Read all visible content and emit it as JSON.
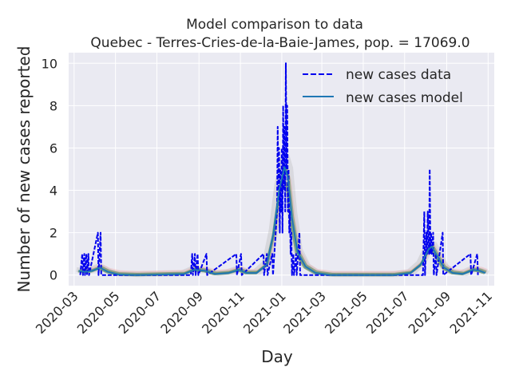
{
  "chart_data": {
    "type": "line",
    "title": "Model comparison to data",
    "subtitle": "Quebec - Terres-Cries-de-la-Baie-James, pop. = 17069.0",
    "xlabel": "Day",
    "ylabel": "Number of new cases reported",
    "xlim": [
      "2020-02-22",
      "2021-11-10"
    ],
    "ylim": [
      -0.5,
      10.5
    ],
    "yticks": [
      0,
      2,
      4,
      6,
      8,
      10
    ],
    "xticks": [
      "2020-03",
      "2020-05",
      "2020-07",
      "2020-09",
      "2020-11",
      "2021-01",
      "2021-03",
      "2021-05",
      "2021-07",
      "2021-09",
      "2021-11"
    ],
    "grid": true,
    "legend_position": "top-right",
    "colors": {
      "background": "#eaeaf2",
      "grid": "#ffffff",
      "data": "#0000ee",
      "model": "#1f77b4",
      "ensemble_gray": "#b4b4b4",
      "ensemble_pink": "#f0a0a0",
      "ensemble_green": "#5a8a5a"
    },
    "series": [
      {
        "name": "new cases data",
        "style": "dashed",
        "points": [
          [
            "2020-03-10",
            0
          ],
          [
            "2020-03-13",
            1
          ],
          [
            "2020-03-14",
            0
          ],
          [
            "2020-03-16",
            1
          ],
          [
            "2020-03-17",
            0
          ],
          [
            "2020-03-19",
            1
          ],
          [
            "2020-03-20",
            0
          ],
          [
            "2020-03-22",
            1
          ],
          [
            "2020-03-23",
            0
          ],
          [
            "2020-04-05",
            2
          ],
          [
            "2020-04-06",
            0
          ],
          [
            "2020-04-09",
            2
          ],
          [
            "2020-04-10",
            0
          ],
          [
            "2020-08-20",
            0
          ],
          [
            "2020-08-22",
            1
          ],
          [
            "2020-08-23",
            0
          ],
          [
            "2020-08-26",
            1
          ],
          [
            "2020-08-27",
            0
          ],
          [
            "2020-08-30",
            1
          ],
          [
            "2020-08-31",
            0
          ],
          [
            "2020-09-12",
            1
          ],
          [
            "2020-09-13",
            0
          ],
          [
            "2020-10-26",
            1
          ],
          [
            "2020-10-27",
            0
          ],
          [
            "2020-11-02",
            1
          ],
          [
            "2020-11-03",
            0
          ],
          [
            "2020-12-05",
            1
          ],
          [
            "2020-12-06",
            0
          ],
          [
            "2020-12-10",
            1
          ],
          [
            "2020-12-11",
            0
          ],
          [
            "2020-12-18",
            1
          ],
          [
            "2020-12-19",
            0
          ],
          [
            "2020-12-25",
            3
          ],
          [
            "2020-12-26",
            7
          ],
          [
            "2020-12-27",
            4
          ],
          [
            "2020-12-28",
            6
          ],
          [
            "2020-12-29",
            2
          ],
          [
            "2020-12-30",
            5
          ],
          [
            "2020-12-31",
            3
          ],
          [
            "2021-01-01",
            6
          ],
          [
            "2021-01-02",
            2
          ],
          [
            "2021-01-03",
            8
          ],
          [
            "2021-01-04",
            4
          ],
          [
            "2021-01-05",
            7
          ],
          [
            "2021-01-06",
            3
          ],
          [
            "2021-01-07",
            10
          ],
          [
            "2021-01-08",
            5
          ],
          [
            "2021-01-09",
            8
          ],
          [
            "2021-01-10",
            3
          ],
          [
            "2021-01-11",
            5
          ],
          [
            "2021-01-12",
            2
          ],
          [
            "2021-01-13",
            3
          ],
          [
            "2021-01-14",
            1
          ],
          [
            "2021-01-15",
            2
          ],
          [
            "2021-01-16",
            0
          ],
          [
            "2021-01-18",
            1
          ],
          [
            "2021-01-19",
            0
          ],
          [
            "2021-01-22",
            1
          ],
          [
            "2021-01-23",
            0
          ],
          [
            "2021-01-27",
            2
          ],
          [
            "2021-01-28",
            0
          ],
          [
            "2021-07-28",
            0
          ],
          [
            "2021-07-30",
            3
          ],
          [
            "2021-07-31",
            0
          ],
          [
            "2021-08-02",
            2
          ],
          [
            "2021-08-03",
            1
          ],
          [
            "2021-08-04",
            3
          ],
          [
            "2021-08-05",
            2
          ],
          [
            "2021-08-06",
            1
          ],
          [
            "2021-08-07",
            5
          ],
          [
            "2021-08-08",
            1
          ],
          [
            "2021-08-09",
            2
          ],
          [
            "2021-08-10",
            1
          ],
          [
            "2021-08-12",
            2
          ],
          [
            "2021-08-13",
            0
          ],
          [
            "2021-08-16",
            1
          ],
          [
            "2021-08-17",
            0
          ],
          [
            "2021-08-26",
            2
          ],
          [
            "2021-08-27",
            0
          ],
          [
            "2021-10-06",
            1
          ],
          [
            "2021-10-07",
            0
          ],
          [
            "2021-10-16",
            1
          ],
          [
            "2021-10-17",
            0
          ]
        ]
      },
      {
        "name": "new cases model",
        "style": "solid",
        "points": [
          [
            "2020-03-08",
            0.2
          ],
          [
            "2020-03-18",
            0.15
          ],
          [
            "2020-03-28",
            0.2
          ],
          [
            "2020-04-08",
            0.35
          ],
          [
            "2020-04-20",
            0.15
          ],
          [
            "2020-05-05",
            0.03
          ],
          [
            "2020-06-01",
            0.0
          ],
          [
            "2020-08-10",
            0.05
          ],
          [
            "2020-08-25",
            0.25
          ],
          [
            "2020-09-10",
            0.2
          ],
          [
            "2020-09-25",
            0.05
          ],
          [
            "2020-10-15",
            0.1
          ],
          [
            "2020-10-30",
            0.25
          ],
          [
            "2020-11-10",
            0.1
          ],
          [
            "2020-11-25",
            0.1
          ],
          [
            "2020-12-10",
            0.5
          ],
          [
            "2020-12-20",
            2.0
          ],
          [
            "2020-12-28",
            4.0
          ],
          [
            "2021-01-05",
            5.1
          ],
          [
            "2021-01-10",
            4.6
          ],
          [
            "2021-01-16",
            2.7
          ],
          [
            "2021-01-24",
            1.1
          ],
          [
            "2021-02-05",
            0.4
          ],
          [
            "2021-02-20",
            0.1
          ],
          [
            "2021-03-15",
            0.0
          ],
          [
            "2021-06-15",
            0.0
          ],
          [
            "2021-07-10",
            0.1
          ],
          [
            "2021-07-25",
            0.5
          ],
          [
            "2021-08-05",
            1.2
          ],
          [
            "2021-08-10",
            1.35
          ],
          [
            "2021-08-18",
            0.9
          ],
          [
            "2021-08-28",
            0.35
          ],
          [
            "2021-09-10",
            0.1
          ],
          [
            "2021-09-25",
            0.05
          ],
          [
            "2021-10-10",
            0.25
          ],
          [
            "2021-10-20",
            0.2
          ],
          [
            "2021-10-28",
            0.1
          ]
        ]
      }
    ]
  }
}
